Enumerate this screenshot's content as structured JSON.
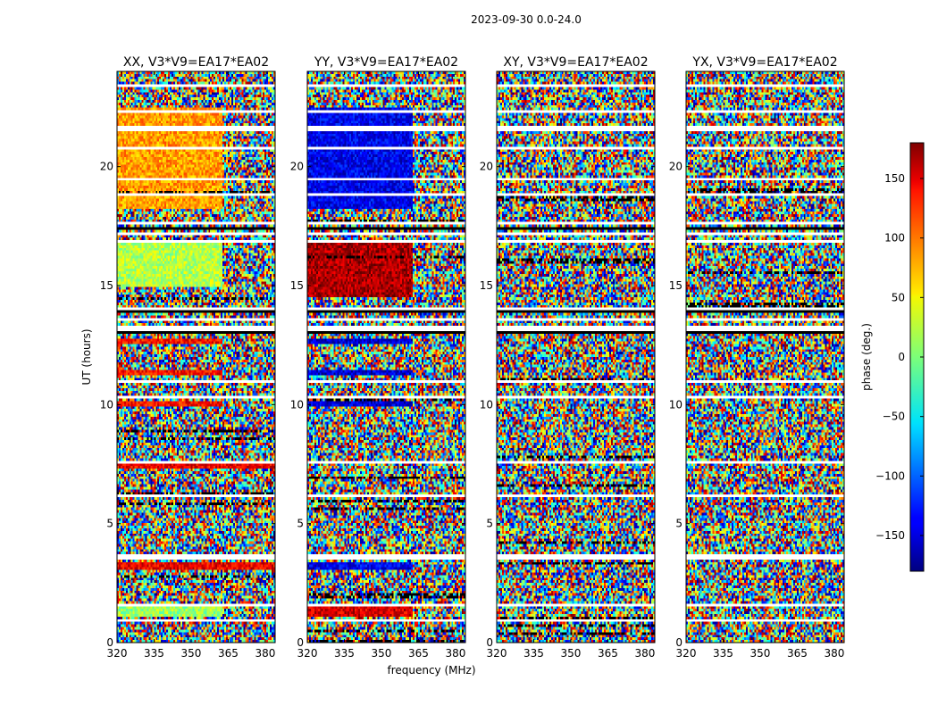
{
  "chart_data": {
    "type": "heatmap",
    "suptitle": "2023-09-30 0.0-24.0",
    "xlabel": "frequency (MHz)",
    "ylabel": "UT (hours)",
    "x_range": [
      320,
      384
    ],
    "x_ticks": [
      320,
      335,
      350,
      365,
      380
    ],
    "y_range": [
      0,
      24
    ],
    "y_ticks": [
      0,
      5,
      10,
      15,
      20
    ],
    "colorbar": {
      "label": "phase (deg.)",
      "range": [
        -180,
        180
      ],
      "ticks": [
        150,
        100,
        50,
        0,
        -50,
        -100,
        -150
      ],
      "tick_labels": [
        "150",
        "100",
        "50",
        "0",
        "−50",
        "−100",
        "−150"
      ],
      "colormap": "jet"
    },
    "panels": [
      {
        "title": "XX, V3*V9=EA17*EA02",
        "coherent_bands": [
          {
            "t0": 18.2,
            "t1": 22.5,
            "f1": 363,
            "phase": 80
          },
          {
            "t0": 15.0,
            "t1": 16.8,
            "f1": 363,
            "phase": 20
          },
          {
            "t0": 12.5,
            "t1": 12.8,
            "f1": 363,
            "phase": 130
          },
          {
            "t0": 11.2,
            "t1": 11.5,
            "f1": 363,
            "phase": 130
          },
          {
            "t0": 9.9,
            "t1": 10.1,
            "f1": 363,
            "phase": 130
          },
          {
            "t0": 7.3,
            "t1": 7.5,
            "f1": 384,
            "phase": 140
          },
          {
            "t0": 3.1,
            "t1": 3.4,
            "f1": 384,
            "phase": 140
          },
          {
            "t0": 1.1,
            "t1": 1.5,
            "f1": 363,
            "phase": 10
          }
        ]
      },
      {
        "title": "YY, V3*V9=EA17*EA02",
        "coherent_bands": [
          {
            "t0": 18.2,
            "t1": 22.5,
            "f1": 363,
            "phase": -140
          },
          {
            "t0": 14.5,
            "t1": 16.8,
            "f1": 363,
            "phase": 165
          },
          {
            "t0": 12.5,
            "t1": 12.8,
            "f1": 363,
            "phase": -150
          },
          {
            "t0": 11.2,
            "t1": 11.5,
            "f1": 363,
            "phase": -150
          },
          {
            "t0": 9.9,
            "t1": 10.1,
            "f1": 363,
            "phase": -150
          },
          {
            "t0": 3.1,
            "t1": 3.4,
            "f1": 363,
            "phase": -140
          },
          {
            "t0": 1.1,
            "t1": 1.5,
            "f1": 363,
            "phase": 150
          }
        ]
      },
      {
        "title": "XY, V3*V9=EA17*EA02",
        "coherent_bands": []
      },
      {
        "title": "YX, V3*V9=EA17*EA02",
        "coherent_bands": []
      }
    ],
    "gaps_hours": [
      23.4,
      22.3,
      21.6,
      20.8,
      19.5,
      18.8,
      17.6,
      17.2,
      16.9,
      14.0,
      13.6,
      13.2,
      11.0,
      10.3,
      7.6,
      6.2,
      3.6,
      1.6,
      0.9
    ],
    "flag_bands_hours": [
      [
        17.0,
        17.8
      ],
      [
        13.8,
        14.1
      ],
      [
        12.9,
        13.1
      ]
    ]
  }
}
